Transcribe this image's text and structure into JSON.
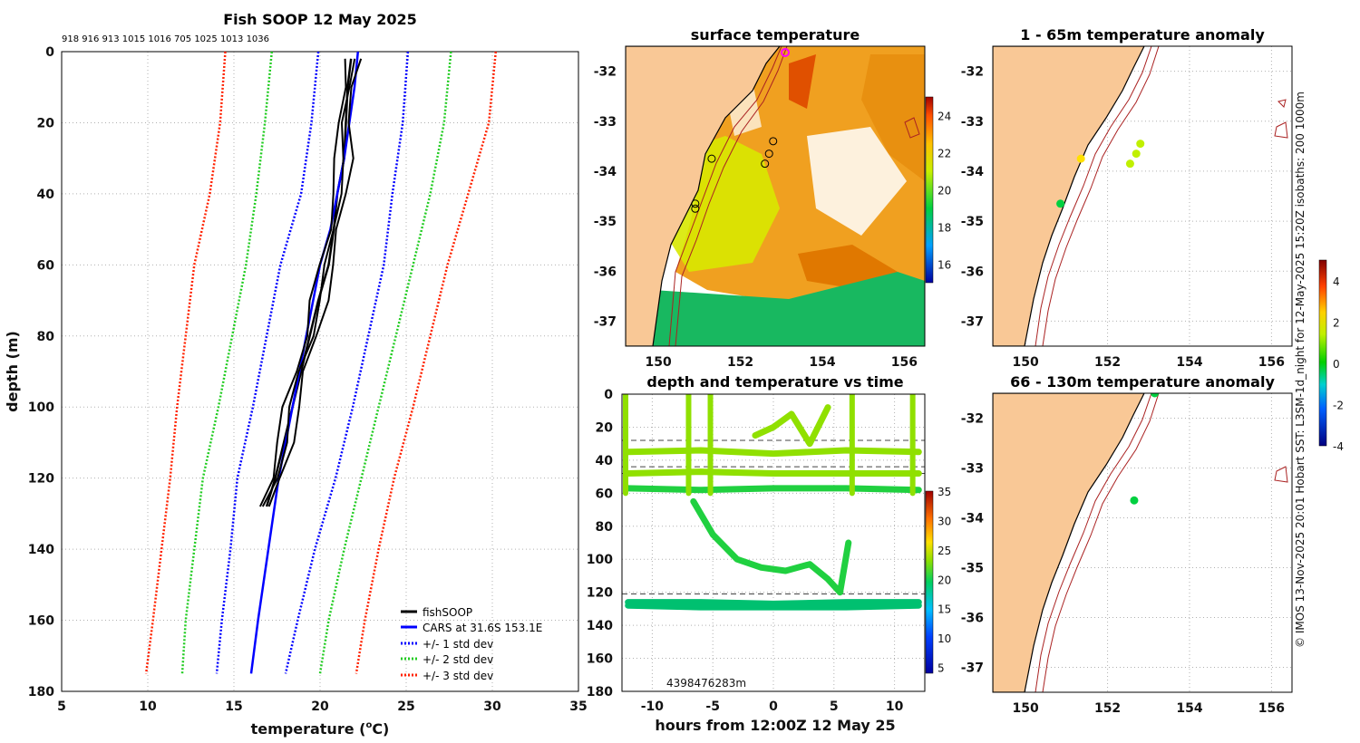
{
  "chart_data": [
    {
      "id": "profile",
      "type": "line",
      "title": "Fish SOOP 12 May 2025",
      "top_annotation": "918 916 913 1015 1016 705 1025 1013 1036",
      "xlabel": "temperature (°C)",
      "xlabel_main": "temperature (",
      "xlabel_sup": "o",
      "xlabel_end": "C)",
      "ylabel": "depth (m)",
      "xlim": [
        5,
        35
      ],
      "ylim": [
        180,
        0
      ],
      "xticks": [
        5,
        10,
        15,
        20,
        25,
        30,
        35
      ],
      "yticks": [
        0,
        20,
        40,
        60,
        80,
        100,
        120,
        140,
        160,
        180
      ],
      "legend": [
        "fishSOOP",
        "CARS at 31.6S 153.1E",
        "+/- 1 std dev",
        "+/- 2 std dev",
        "+/- 3 std dev"
      ],
      "series": [
        {
          "name": "fishSOOP",
          "color": "#000000",
          "depth": [
            2,
            10,
            20,
            30,
            40,
            50,
            60,
            70,
            80,
            90,
            100,
            110,
            120,
            128
          ],
          "temp": [
            21.8,
            21.6,
            21.5,
            21.4,
            21.0,
            20.8,
            20.5,
            19.9,
            19.4,
            18.9,
            18.4,
            17.9,
            17.4,
            16.9
          ]
        },
        {
          "name": "CARS at 31.6S 153.1E",
          "color": "#0000ff",
          "depth": [
            0,
            10,
            20,
            30,
            40,
            50,
            60,
            80,
            100,
            120,
            140,
            160,
            175
          ],
          "temp": [
            22.2,
            22.0,
            21.7,
            21.4,
            21.0,
            20.6,
            20.0,
            19.2,
            18.4,
            17.6,
            17.0,
            16.4,
            16.0
          ]
        },
        {
          "name": "+/- 1 std dev",
          "color": "#0000ff",
          "depth": [
            0,
            20,
            40,
            60,
            80,
            100,
            120,
            140,
            160,
            175
          ],
          "lower": [
            19.9,
            19.5,
            18.9,
            17.7,
            16.9,
            16.1,
            15.2,
            14.8,
            14.3,
            14.0
          ],
          "upper": [
            25.1,
            24.8,
            24.2,
            23.7,
            22.8,
            21.9,
            20.9,
            19.7,
            18.7,
            18.0
          ]
        },
        {
          "name": "+/- 2 std dev",
          "color": "#22cc22",
          "depth": [
            0,
            20,
            40,
            60,
            80,
            100,
            120,
            140,
            160,
            175
          ],
          "lower": [
            17.2,
            16.8,
            16.3,
            15.7,
            14.9,
            14.1,
            13.2,
            12.7,
            12.2,
            12.0
          ],
          "upper": [
            27.6,
            27.2,
            26.4,
            25.4,
            24.4,
            23.4,
            22.4,
            21.4,
            20.5,
            20.0
          ]
        },
        {
          "name": "+/- 3 std dev",
          "color": "#ff2200",
          "depth": [
            0,
            20,
            40,
            60,
            80,
            100,
            120,
            140,
            160,
            175
          ],
          "lower": [
            14.5,
            14.2,
            13.6,
            12.7,
            12.2,
            11.7,
            11.3,
            10.8,
            10.3,
            9.9
          ],
          "upper": [
            30.2,
            29.8,
            28.6,
            27.4,
            26.4,
            25.4,
            24.3,
            23.4,
            22.6,
            22.1
          ]
        }
      ]
    },
    {
      "id": "timeseries",
      "type": "scatter",
      "title": "depth and temperature vs time",
      "xlabel": "hours from 12:00Z 12 May 25",
      "xlim": [
        -12.5,
        12.5
      ],
      "ylim": [
        180,
        0
      ],
      "xticks": [
        -10,
        -5,
        0,
        5,
        10
      ],
      "yticks": [
        0,
        20,
        40,
        60,
        80,
        100,
        120,
        140,
        160,
        180
      ],
      "dashed_depths": [
        28,
        44,
        48,
        121
      ],
      "annotation": "4398476283m",
      "colorbar": {
        "range": [
          4,
          35
        ],
        "ticks": [
          5,
          10,
          15,
          20,
          25,
          30,
          35
        ]
      },
      "tracks": [
        {
          "temp": 21.5,
          "hours": [
            -12,
            -6,
            0,
            6,
            12
          ],
          "depth": [
            35,
            34,
            36,
            34,
            35
          ]
        },
        {
          "temp": 21.0,
          "hours": [
            -12,
            -6,
            0,
            6,
            12
          ],
          "depth": [
            48,
            47,
            48,
            48,
            48
          ]
        },
        {
          "temp": 20.5,
          "hours": [
            -12,
            -6,
            0,
            6,
            12
          ],
          "depth": [
            57,
            58,
            57,
            57,
            58
          ]
        },
        {
          "temp": 18.0,
          "hours": [
            -12,
            -6,
            0,
            6,
            12
          ],
          "depth": [
            126,
            126,
            127,
            126,
            126
          ]
        },
        {
          "temp": 17.0,
          "hours": [
            -12,
            -6,
            0,
            6,
            12
          ],
          "depth": [
            128,
            129,
            129,
            129,
            128
          ]
        },
        {
          "temp": 19.0,
          "hours": [
            -6.6,
            -5,
            -3,
            -1,
            1,
            3,
            4.5,
            5.5,
            6.2
          ],
          "depth": [
            65,
            85,
            100,
            105,
            107,
            103,
            112,
            120,
            90
          ]
        },
        {
          "temp": 22.5,
          "hours": [
            -1.5,
            0,
            1.5,
            3,
            4.5
          ],
          "depth": [
            25,
            20,
            12,
            30,
            8
          ]
        }
      ]
    },
    {
      "id": "sst",
      "type": "heatmap",
      "title": "surface temperature",
      "xlim": [
        149.2,
        156.5
      ],
      "ylim": [
        -37.5,
        -31.5
      ],
      "xticks": [
        150,
        152,
        154,
        156
      ],
      "yticks": [
        -32,
        -33,
        -34,
        -35,
        -36,
        -37
      ],
      "colorbar": {
        "range": [
          15,
          25
        ],
        "ticks": [
          16,
          18,
          20,
          22,
          24
        ]
      },
      "stations": [
        [
          153.0,
          -31.6
        ],
        [
          152.8,
          -33.4
        ],
        [
          152.7,
          -33.65
        ],
        [
          152.6,
          -33.85
        ],
        [
          151.3,
          -33.75
        ],
        [
          150.9,
          -34.65
        ],
        [
          150.9,
          -34.75
        ]
      ]
    },
    {
      "id": "anom1",
      "type": "scatter",
      "title": "1 - 65m temperature anomaly",
      "xlim": [
        149.2,
        156.5
      ],
      "ylim": [
        -37.5,
        -31.5
      ],
      "xticks": [
        150,
        152,
        154,
        156
      ],
      "yticks": [
        -32,
        -33,
        -34,
        -35,
        -36,
        -37
      ],
      "points": [
        {
          "lon": 151.35,
          "lat": -33.75,
          "anom": 1.8
        },
        {
          "lon": 152.8,
          "lat": -33.45,
          "anom": 0.6
        },
        {
          "lon": 152.7,
          "lat": -33.65,
          "anom": 0.6
        },
        {
          "lon": 152.55,
          "lat": -33.85,
          "anom": 0.6
        },
        {
          "lon": 150.85,
          "lat": -34.65,
          "anom": 0.3
        }
      ]
    },
    {
      "id": "anom2",
      "type": "scatter",
      "title": "66 - 130m temperature anomaly",
      "xlim": [
        149.2,
        156.5
      ],
      "ylim": [
        -37.5,
        -31.5
      ],
      "xticks": [
        150,
        152,
        154,
        156
      ],
      "yticks": [
        -32,
        -33,
        -34,
        -35,
        -36,
        -37
      ],
      "points": [
        {
          "lon": 153.15,
          "lat": -31.5,
          "anom": 0.2
        },
        {
          "lon": 152.65,
          "lat": -33.65,
          "anom": 0.2
        }
      ]
    },
    {
      "id": "anom_colorbar",
      "type": "colorbar",
      "range": [
        -4,
        5
      ],
      "ticks": [
        4,
        2,
        0,
        -2,
        -4
      ]
    }
  ],
  "credit": "© IMOS 13-Nov-2025 20:01 Hobart SST: L3SM-1d_night for 12-May-2025 15:20Z isobaths: 200  1000m",
  "colors": {
    "land": "#f9c896",
    "grid": "#aaaaaa",
    "coast": "#000000",
    "isobath": "#aa2222"
  }
}
